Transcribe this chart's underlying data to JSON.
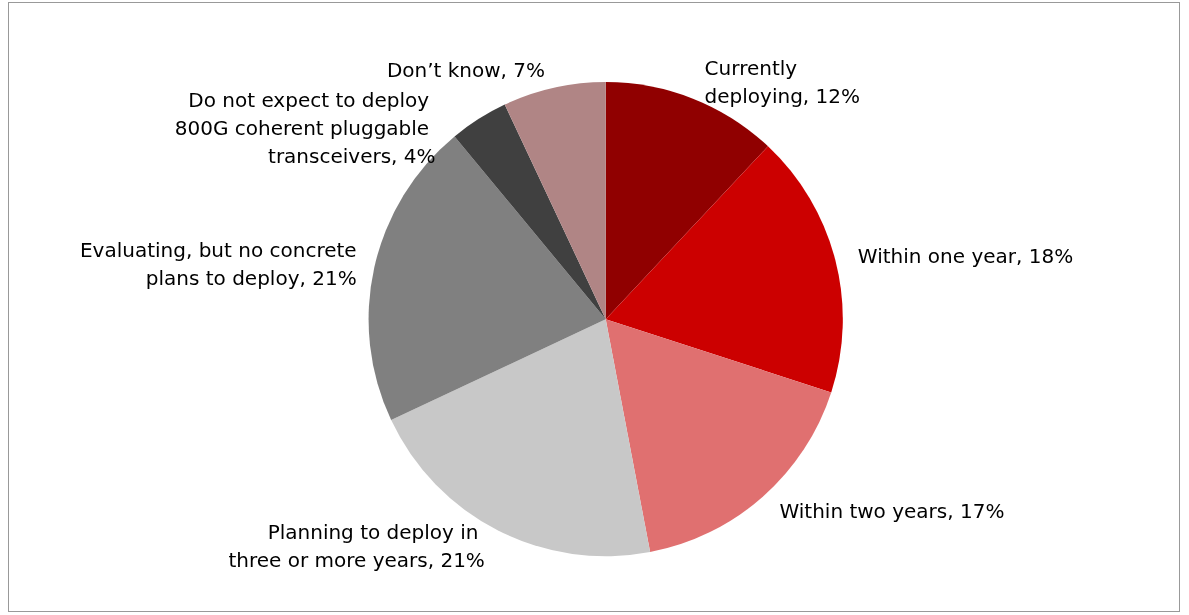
{
  "chart_data": {
    "type": "pie",
    "categories": [
      "Currently deploying",
      "Within one year",
      "Within two years",
      "Planning to deploy in three or more years",
      "Evaluating, but no concrete plans to deploy",
      "Do not expect to deploy 800G coherent pluggable transceivers",
      "Don’t know"
    ],
    "values": [
      12,
      18,
      17,
      21,
      21,
      4,
      7
    ],
    "value_labels": [
      "12%",
      "18%",
      "17%",
      "21%",
      "21%",
      "4%",
      "7%"
    ],
    "colors": [
      "#900000",
      "#cc0000",
      "#e07070",
      "#c8c8c8",
      "#808080",
      "#404040",
      "#b08585"
    ],
    "legend": false
  }
}
